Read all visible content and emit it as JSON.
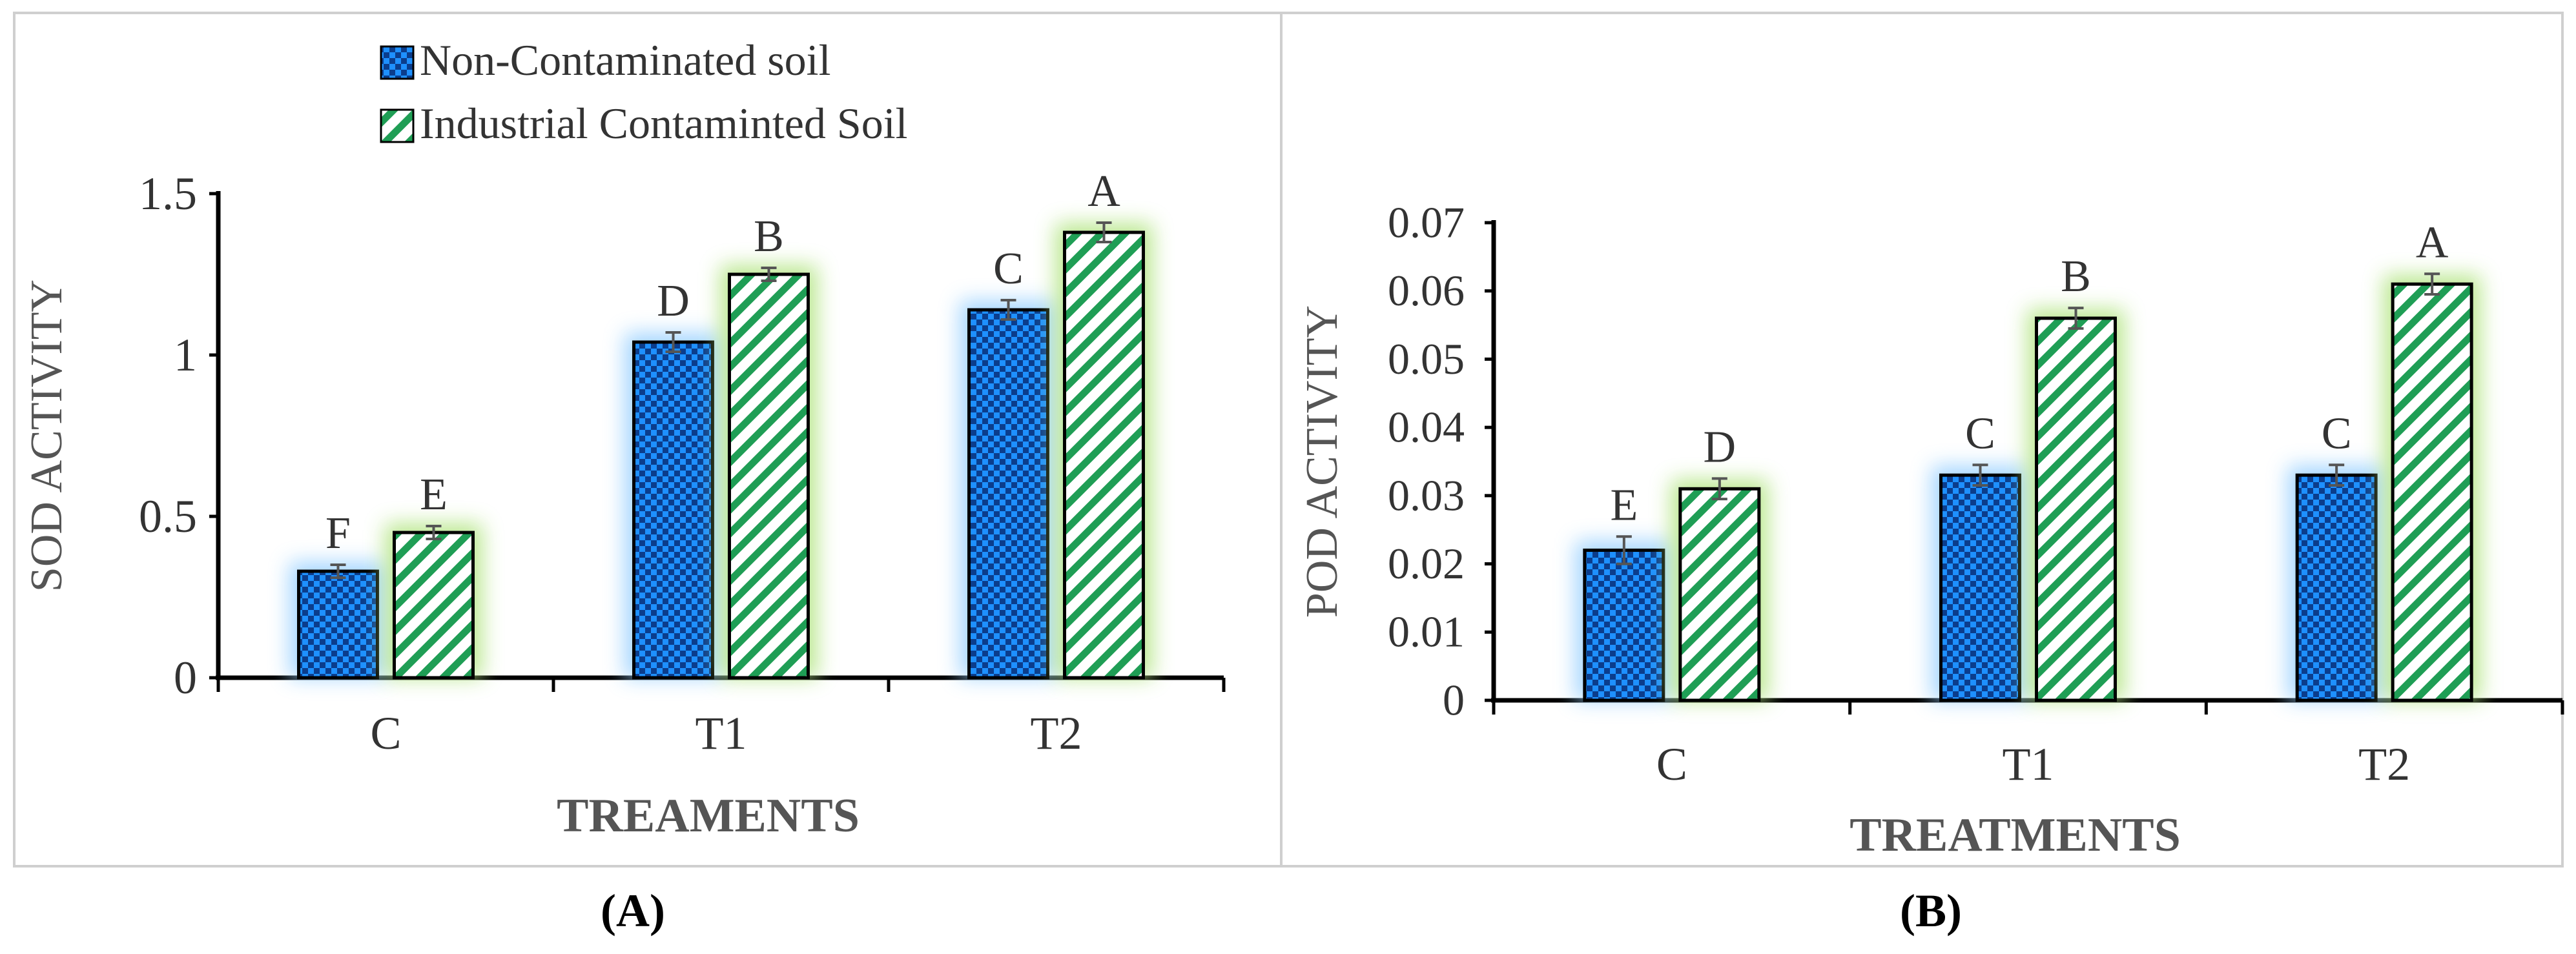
{
  "legend": {
    "items": [
      {
        "label": "Non-Contaminated soil",
        "pattern": "checker-blue"
      },
      {
        "label": "Industrial Contaminted Soil",
        "pattern": "stripe-green"
      }
    ]
  },
  "panel_labels": [
    "(A)",
    "(B)"
  ],
  "colors": {
    "blue_dark": "#0b3d8c",
    "blue_light": "#1e90ff",
    "glow_blue": "#9fd3ff",
    "green": "#1f9e55",
    "glow_green": "#b7e68a",
    "error_bar": "#555555",
    "axis": "#000000",
    "border": "#cfcfcf"
  },
  "chart_data": [
    {
      "type": "bar",
      "panel": "(A)",
      "categories": [
        "C",
        "T1",
        "T2"
      ],
      "series": [
        {
          "name": "Non-Contaminated soil",
          "values": [
            0.33,
            1.04,
            1.14
          ],
          "errors": [
            0.02,
            0.03,
            0.03
          ],
          "letters": [
            "F",
            "D",
            "C"
          ]
        },
        {
          "name": "Industrial Contaminted Soil",
          "values": [
            0.45,
            1.25,
            1.38
          ],
          "errors": [
            0.02,
            0.02,
            0.03
          ],
          "letters": [
            "E",
            "B",
            "A"
          ]
        }
      ],
      "xlabel": "TREAMENTS",
      "ylabel": "SOD ACTIVITY",
      "ylim": [
        0,
        1.5
      ],
      "yticks": [
        "0",
        "0.5",
        "1",
        "1.5"
      ],
      "grid": false
    },
    {
      "type": "bar",
      "panel": "(B)",
      "categories": [
        "C",
        "T1",
        "T2"
      ],
      "series": [
        {
          "name": "Non-Contaminated soil",
          "values": [
            0.022,
            0.033,
            0.033
          ],
          "errors": [
            0.002,
            0.0015,
            0.0015
          ],
          "letters": [
            "E",
            "C",
            "C"
          ]
        },
        {
          "name": "Industrial Contaminted Soil",
          "values": [
            0.031,
            0.056,
            0.061
          ],
          "errors": [
            0.0015,
            0.0015,
            0.0015
          ],
          "letters": [
            "D",
            "B",
            "A"
          ]
        }
      ],
      "xlabel": "TREATMENTS",
      "ylabel": "POD ACTIVITY",
      "ylim": [
        0,
        0.07
      ],
      "yticks": [
        "0",
        "0.01",
        "0.02",
        "0.03",
        "0.04",
        "0.05",
        "0.06",
        "0.07"
      ],
      "grid": false
    }
  ]
}
